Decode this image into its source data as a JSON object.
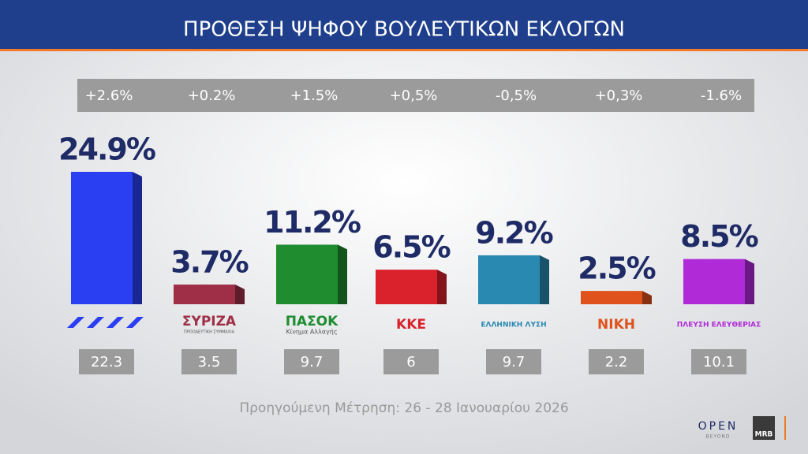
{
  "chart_data": {
    "type": "bar",
    "title": "ΠΡΟΘΕΣΗ ΨΗΦΟΥ ΒΟΥΛΕΥΤΙΚΩΝ ΕΚΛΟΓΩΝ",
    "categories": [
      null,
      "ΣΥΡΙΖΑ",
      "ΠΑΣΟΚ",
      "ΚΚΕ",
      "ΕΛΛΗΝΙΚΗ ΛΥΣΗ",
      "ΝΙΚΗ",
      "ΠΛΕΥΣΗ ΕΛΕΥΘΕΡΙΑΣ"
    ],
    "logo_subtexts": [
      null,
      "ΠΡΟΟΔΕΥΤΙΚΗ ΣΥΜΜΑΧΙΑ",
      "Κίνημα Αλλαγής",
      null,
      null,
      null,
      null
    ],
    "values": [
      24.9,
      3.7,
      11.2,
      6.5,
      9.2,
      2.5,
      8.5
    ],
    "value_labels": [
      "24.9%",
      "3.7%",
      "11.2%",
      "6.5%",
      "9.2%",
      "2.5%",
      "8.5%"
    ],
    "colors": [
      "#2b3ff2",
      "#9e2f47",
      "#1f8c30",
      "#d9222c",
      "#2a89b0",
      "#e0521c",
      "#b02ad8"
    ],
    "change_labels": [
      "+2.6%",
      "+0.2%",
      "+1.5%",
      "+0,5%",
      "-0,5%",
      "+0,3%",
      "-1.6%"
    ],
    "previous": [
      22.3,
      3.5,
      9.7,
      6,
      9.7,
      2.2,
      10.1
    ],
    "footnote": "Προηγούμενη Μέτρηση: 26 - 28 Ιανουαρίου 2026",
    "brand": "OPEN",
    "brand_sub": "BEYOND",
    "pollster": "MRB"
  }
}
